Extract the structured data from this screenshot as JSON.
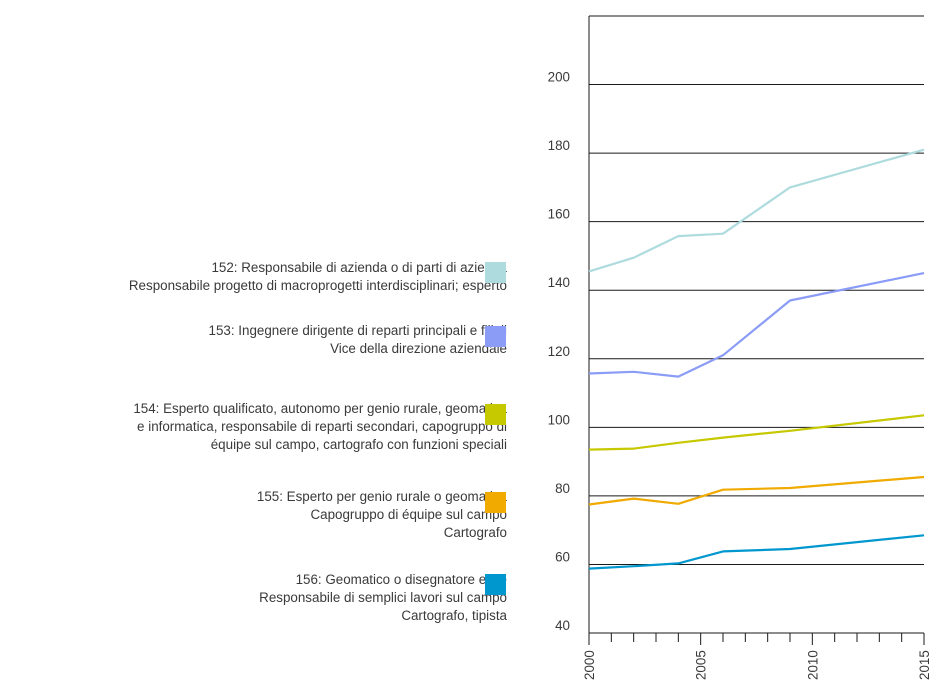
{
  "chart_data": {
    "type": "line",
    "title": "",
    "xlabel": "",
    "ylabel": "",
    "xlim": [
      2000,
      2015
    ],
    "ylim": [
      40,
      220
    ],
    "x_ticks": [
      2000,
      2005,
      2010,
      2015
    ],
    "y_ticks": [
      40,
      60,
      80,
      100,
      120,
      140,
      160,
      180,
      200
    ],
    "grid": "horizontal",
    "legend_position": "left",
    "series": [
      {
        "name": "152",
        "color": "#aedbde",
        "label_lines": [
          "152: Responsabile di azienda o di parti di azienda",
          "Responsabile progetto di macroprogetti interdisciplinari; esperto"
        ],
        "x": [
          2000,
          2002,
          2004,
          2006,
          2009,
          2015
        ],
        "y": [
          145.5,
          149.5,
          155.8,
          156.5,
          170,
          181
        ]
      },
      {
        "name": "153",
        "color": "#8b9cf7",
        "label_lines": [
          "153: Ingegnere dirigente di reparti principali e filiali",
          "Vice della direzione aziendale"
        ],
        "x": [
          2000,
          2002,
          2004,
          2006,
          2009,
          2015
        ],
        "y": [
          115.7,
          116.2,
          114.8,
          121,
          137,
          145
        ]
      },
      {
        "name": "154",
        "color": "#c6c800",
        "label_lines": [
          "154: Esperto qualificato, autonomo per genio rurale, geomatica",
          "e informatica, responsabile di reparti secondari, capogruppo di",
          "équipe sul campo, cartografo con funzioni speciali"
        ],
        "x": [
          2000,
          2002,
          2004,
          2006,
          2009,
          2015
        ],
        "y": [
          93.5,
          93.8,
          95.5,
          97,
          99,
          103.5
        ]
      },
      {
        "name": "155",
        "color": "#f0aa00",
        "label_lines": [
          "155: Esperto per genio rurale o geomatica",
          "Capogruppo di équipe sul campo",
          "Cartografo"
        ],
        "x": [
          2000,
          2002,
          2004,
          2006,
          2009,
          2015
        ],
        "y": [
          77.5,
          79.2,
          77.7,
          81.8,
          82.3,
          85.5
        ]
      },
      {
        "name": "156",
        "color": "#0097cf",
        "label_lines": [
          "156: Geomatico o disegnatore edile",
          "Responsabile di semplici lavori sul campo",
          "Cartografo, tipista"
        ],
        "x": [
          2000,
          2002,
          2004,
          2006,
          2009,
          2015
        ],
        "y": [
          58.8,
          59.5,
          60.3,
          63.8,
          64.5,
          68.5
        ]
      }
    ]
  }
}
